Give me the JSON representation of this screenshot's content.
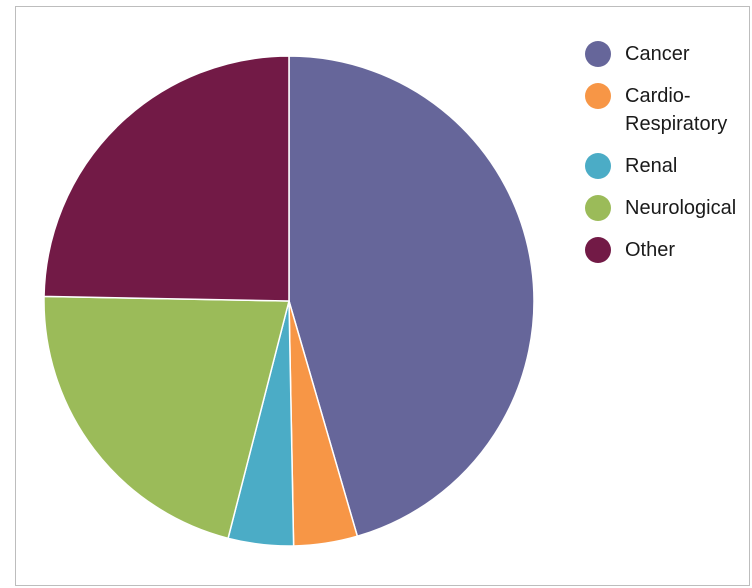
{
  "chart_data": {
    "type": "pie",
    "categories": [
      "Cancer",
      "Cardio-Respiratory",
      "Renal",
      "Neurological",
      "Other"
    ],
    "values": [
      45.5,
      4.2,
      4.3,
      21.3,
      24.7
    ],
    "colors": [
      "#66669a",
      "#f79646",
      "#4bacc6",
      "#9bbb59",
      "#721a46"
    ],
    "start_angle_deg": 0,
    "direction": "clockwise",
    "legend_position": "right",
    "title": ""
  },
  "legend": {
    "items": [
      {
        "label": "Cancer",
        "color": "#66669a"
      },
      {
        "label": "Cardio-Respiratory",
        "color": "#f79646"
      },
      {
        "label": "Renal",
        "color": "#4bacc6"
      },
      {
        "label": "Neurological",
        "color": "#9bbb59"
      },
      {
        "label": "Other",
        "color": "#721a46"
      }
    ]
  }
}
